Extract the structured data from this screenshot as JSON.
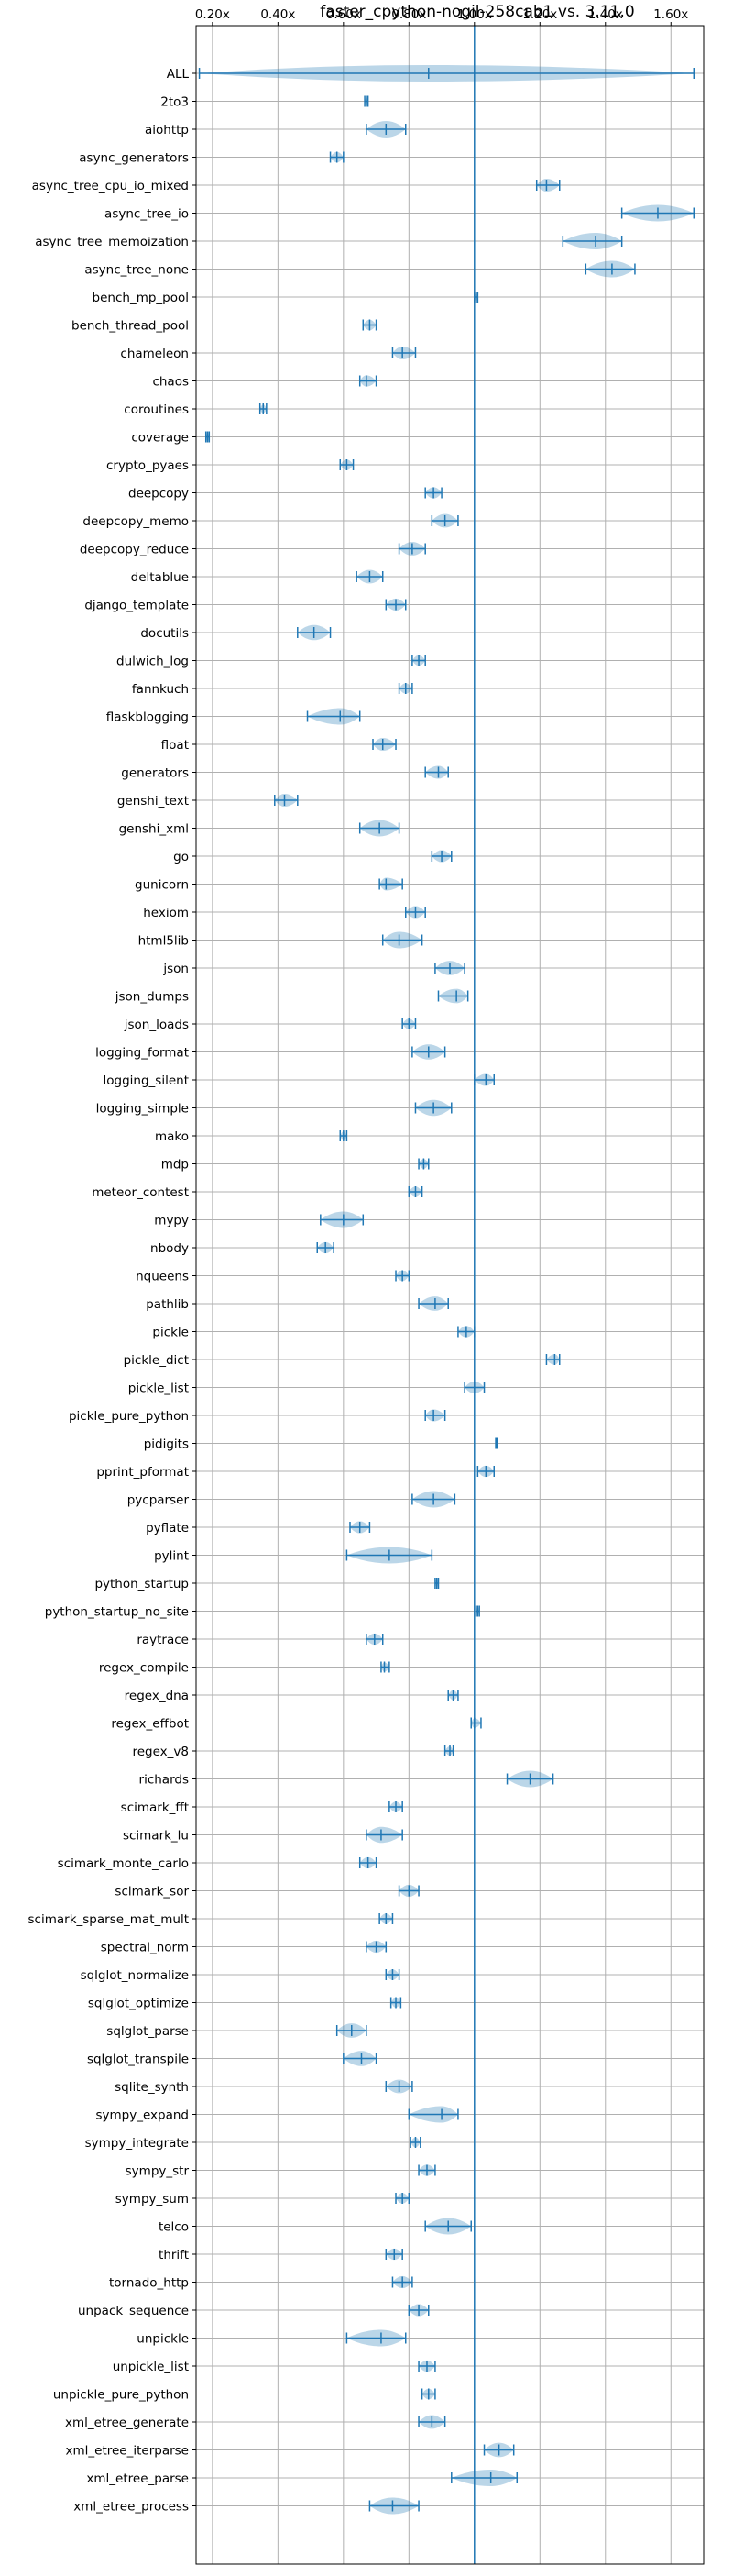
{
  "chart_data": {
    "type": "violin",
    "title": "faster_cpython-nogil-258cab1 vs. 3.11.0",
    "xlabel": "",
    "ylabel": "",
    "xlim": [
      0.15,
      1.7
    ],
    "xticks": [
      0.2,
      0.4,
      0.6,
      0.8,
      1.0,
      1.2,
      1.4,
      1.6
    ],
    "xtick_labels": [
      "0.20x",
      "0.40x",
      "0.60x",
      "0.80x",
      "1.00x",
      "1.20x",
      "1.40x",
      "1.60x"
    ],
    "tick_position": "top",
    "grid": true,
    "reference_line": 1.0,
    "colors": {
      "violin": "#1f77b4",
      "grid": "#b0b0b0",
      "reference": "#1f77b4"
    },
    "benchmarks": [
      {
        "name": "ALL",
        "min": 0.16,
        "max": 1.67,
        "mean": 0.86
      },
      {
        "name": "2to3",
        "min": 0.665,
        "max": 0.675,
        "mean": 0.67
      },
      {
        "name": "aiohttp",
        "min": 0.67,
        "max": 0.79,
        "mean": 0.73
      },
      {
        "name": "async_generators",
        "min": 0.56,
        "max": 0.6,
        "mean": 0.58
      },
      {
        "name": "async_tree_cpu_io_mixed",
        "min": 1.19,
        "max": 1.26,
        "mean": 1.22
      },
      {
        "name": "async_tree_io",
        "min": 1.45,
        "max": 1.67,
        "mean": 1.56
      },
      {
        "name": "async_tree_memoization",
        "min": 1.27,
        "max": 1.45,
        "mean": 1.37
      },
      {
        "name": "async_tree_none",
        "min": 1.34,
        "max": 1.49,
        "mean": 1.42
      },
      {
        "name": "bench_mp_pool",
        "min": 1.0,
        "max": 1.01,
        "mean": 1.005
      },
      {
        "name": "bench_thread_pool",
        "min": 0.66,
        "max": 0.7,
        "mean": 0.68
      },
      {
        "name": "chameleon",
        "min": 0.75,
        "max": 0.82,
        "mean": 0.78
      },
      {
        "name": "chaos",
        "min": 0.65,
        "max": 0.7,
        "mean": 0.67
      },
      {
        "name": "coroutines",
        "min": 0.345,
        "max": 0.365,
        "mean": 0.355
      },
      {
        "name": "coverage",
        "min": 0.18,
        "max": 0.19,
        "mean": 0.185
      },
      {
        "name": "crypto_pyaes",
        "min": 0.59,
        "max": 0.63,
        "mean": 0.61
      },
      {
        "name": "deepcopy",
        "min": 0.85,
        "max": 0.9,
        "mean": 0.875
      },
      {
        "name": "deepcopy_memo",
        "min": 0.87,
        "max": 0.95,
        "mean": 0.91
      },
      {
        "name": "deepcopy_reduce",
        "min": 0.77,
        "max": 0.85,
        "mean": 0.81
      },
      {
        "name": "deltablue",
        "min": 0.64,
        "max": 0.72,
        "mean": 0.68
      },
      {
        "name": "django_template",
        "min": 0.73,
        "max": 0.79,
        "mean": 0.76
      },
      {
        "name": "docutils",
        "min": 0.46,
        "max": 0.56,
        "mean": 0.51
      },
      {
        "name": "dulwich_log",
        "min": 0.81,
        "max": 0.85,
        "mean": 0.83
      },
      {
        "name": "fannkuch",
        "min": 0.77,
        "max": 0.81,
        "mean": 0.79
      },
      {
        "name": "flaskblogging",
        "min": 0.49,
        "max": 0.65,
        "mean": 0.59
      },
      {
        "name": "float",
        "min": 0.69,
        "max": 0.76,
        "mean": 0.72
      },
      {
        "name": "generators",
        "min": 0.85,
        "max": 0.92,
        "mean": 0.89
      },
      {
        "name": "genshi_text",
        "min": 0.39,
        "max": 0.46,
        "mean": 0.42
      },
      {
        "name": "genshi_xml",
        "min": 0.65,
        "max": 0.77,
        "mean": 0.71
      },
      {
        "name": "go",
        "min": 0.87,
        "max": 0.93,
        "mean": 0.9
      },
      {
        "name": "gunicorn",
        "min": 0.71,
        "max": 0.78,
        "mean": 0.73
      },
      {
        "name": "hexiom",
        "min": 0.79,
        "max": 0.85,
        "mean": 0.82
      },
      {
        "name": "html5lib",
        "min": 0.72,
        "max": 0.84,
        "mean": 0.77
      },
      {
        "name": "json",
        "min": 0.88,
        "max": 0.97,
        "mean": 0.925
      },
      {
        "name": "json_dumps",
        "min": 0.89,
        "max": 0.98,
        "mean": 0.945
      },
      {
        "name": "json_loads",
        "min": 0.78,
        "max": 0.82,
        "mean": 0.8
      },
      {
        "name": "logging_format",
        "min": 0.81,
        "max": 0.91,
        "mean": 0.86
      },
      {
        "name": "logging_silent",
        "min": 1.0,
        "max": 1.06,
        "mean": 1.035
      },
      {
        "name": "logging_simple",
        "min": 0.82,
        "max": 0.93,
        "mean": 0.875
      },
      {
        "name": "mako",
        "min": 0.59,
        "max": 0.61,
        "mean": 0.6
      },
      {
        "name": "mdp",
        "min": 0.83,
        "max": 0.86,
        "mean": 0.845
      },
      {
        "name": "meteor_contest",
        "min": 0.8,
        "max": 0.84,
        "mean": 0.82
      },
      {
        "name": "mypy",
        "min": 0.53,
        "max": 0.66,
        "mean": 0.6
      },
      {
        "name": "nbody",
        "min": 0.52,
        "max": 0.57,
        "mean": 0.545
      },
      {
        "name": "nqueens",
        "min": 0.76,
        "max": 0.8,
        "mean": 0.78
      },
      {
        "name": "pathlib",
        "min": 0.83,
        "max": 0.92,
        "mean": 0.88
      },
      {
        "name": "pickle",
        "min": 0.95,
        "max": 1.0,
        "mean": 0.975
      },
      {
        "name": "pickle_dict",
        "min": 1.22,
        "max": 1.26,
        "mean": 1.245
      },
      {
        "name": "pickle_list",
        "min": 0.97,
        "max": 1.03,
        "mean": 1.0
      },
      {
        "name": "pickle_pure_python",
        "min": 0.85,
        "max": 0.91,
        "mean": 0.875
      },
      {
        "name": "pidigits",
        "min": 1.065,
        "max": 1.07,
        "mean": 1.068
      },
      {
        "name": "pprint_pformat",
        "min": 1.01,
        "max": 1.06,
        "mean": 1.035
      },
      {
        "name": "pycparser",
        "min": 0.81,
        "max": 0.94,
        "mean": 0.875
      },
      {
        "name": "pyflate",
        "min": 0.62,
        "max": 0.68,
        "mean": 0.65
      },
      {
        "name": "pylint",
        "min": 0.61,
        "max": 0.87,
        "mean": 0.74
      },
      {
        "name": "python_startup",
        "min": 0.88,
        "max": 0.89,
        "mean": 0.885
      },
      {
        "name": "python_startup_no_site",
        "min": 1.005,
        "max": 1.015,
        "mean": 1.01
      },
      {
        "name": "raytrace",
        "min": 0.67,
        "max": 0.72,
        "mean": 0.695
      },
      {
        "name": "regex_compile",
        "min": 0.715,
        "max": 0.74,
        "mean": 0.725
      },
      {
        "name": "regex_dna",
        "min": 0.92,
        "max": 0.95,
        "mean": 0.935
      },
      {
        "name": "regex_effbot",
        "min": 0.99,
        "max": 1.02,
        "mean": 1.0
      },
      {
        "name": "regex_v8",
        "min": 0.91,
        "max": 0.935,
        "mean": 0.925
      },
      {
        "name": "richards",
        "min": 1.1,
        "max": 1.24,
        "mean": 1.17
      },
      {
        "name": "scimark_fft",
        "min": 0.74,
        "max": 0.78,
        "mean": 0.76
      },
      {
        "name": "scimark_lu",
        "min": 0.67,
        "max": 0.78,
        "mean": 0.715
      },
      {
        "name": "scimark_monte_carlo",
        "min": 0.65,
        "max": 0.7,
        "mean": 0.675
      },
      {
        "name": "scimark_sor",
        "min": 0.77,
        "max": 0.83,
        "mean": 0.8
      },
      {
        "name": "scimark_sparse_mat_mult",
        "min": 0.71,
        "max": 0.75,
        "mean": 0.73
      },
      {
        "name": "spectral_norm",
        "min": 0.67,
        "max": 0.73,
        "mean": 0.7
      },
      {
        "name": "sqlglot_normalize",
        "min": 0.73,
        "max": 0.77,
        "mean": 0.75
      },
      {
        "name": "sqlglot_optimize",
        "min": 0.745,
        "max": 0.775,
        "mean": 0.76
      },
      {
        "name": "sqlglot_parse",
        "min": 0.58,
        "max": 0.67,
        "mean": 0.625
      },
      {
        "name": "sqlglot_transpile",
        "min": 0.6,
        "max": 0.7,
        "mean": 0.655
      },
      {
        "name": "sqlite_synth",
        "min": 0.73,
        "max": 0.81,
        "mean": 0.77
      },
      {
        "name": "sympy_expand",
        "min": 0.8,
        "max": 0.95,
        "mean": 0.9
      },
      {
        "name": "sympy_integrate",
        "min": 0.805,
        "max": 0.835,
        "mean": 0.82
      },
      {
        "name": "sympy_str",
        "min": 0.83,
        "max": 0.88,
        "mean": 0.855
      },
      {
        "name": "sympy_sum",
        "min": 0.76,
        "max": 0.8,
        "mean": 0.78
      },
      {
        "name": "telco",
        "min": 0.85,
        "max": 0.99,
        "mean": 0.92
      },
      {
        "name": "thrift",
        "min": 0.73,
        "max": 0.78,
        "mean": 0.755
      },
      {
        "name": "tornado_http",
        "min": 0.75,
        "max": 0.81,
        "mean": 0.78
      },
      {
        "name": "unpack_sequence",
        "min": 0.8,
        "max": 0.86,
        "mean": 0.83
      },
      {
        "name": "unpickle",
        "min": 0.61,
        "max": 0.79,
        "mean": 0.715
      },
      {
        "name": "unpickle_list",
        "min": 0.83,
        "max": 0.88,
        "mean": 0.855
      },
      {
        "name": "unpickle_pure_python",
        "min": 0.84,
        "max": 0.88,
        "mean": 0.86
      },
      {
        "name": "xml_etree_generate",
        "min": 0.83,
        "max": 0.91,
        "mean": 0.87
      },
      {
        "name": "xml_etree_iterparse",
        "min": 1.03,
        "max": 1.12,
        "mean": 1.075
      },
      {
        "name": "xml_etree_parse",
        "min": 0.93,
        "max": 1.13,
        "mean": 1.05
      },
      {
        "name": "xml_etree_process",
        "min": 0.68,
        "max": 0.83,
        "mean": 0.75
      }
    ]
  }
}
